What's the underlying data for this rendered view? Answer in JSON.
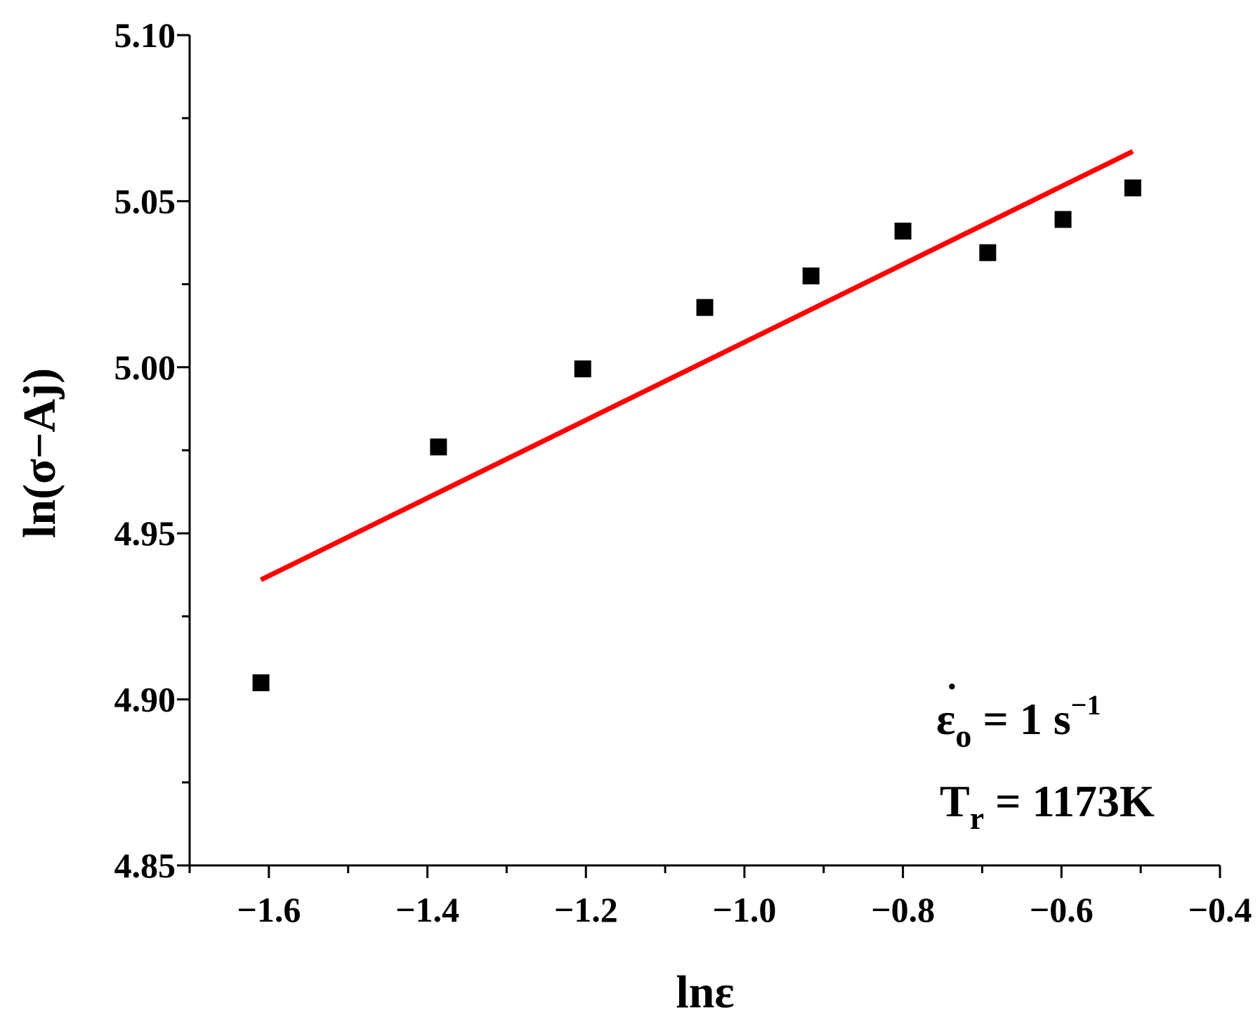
{
  "chart_data": {
    "type": "scatter",
    "title": "",
    "xlabel": "lnε",
    "ylabel": "ln(σ−Aj)",
    "xlim": [
      -1.7,
      -0.4
    ],
    "ylim": [
      4.85,
      5.1
    ],
    "x_ticks": [
      -1.6,
      -1.4,
      -1.2,
      -1.0,
      -0.8,
      -0.6,
      -0.4
    ],
    "x_tick_labels": [
      "−1.6",
      "−1.4",
      "−1.2",
      "−1.0",
      "−0.8",
      "−0.6",
      "−0.4"
    ],
    "y_ticks": [
      4.85,
      4.9,
      4.95,
      5.0,
      5.05,
      5.1
    ],
    "y_tick_labels": [
      "4.85",
      "4.90",
      "4.95",
      "5.00",
      "5.05",
      "5.10"
    ],
    "grid": false,
    "series": [
      {
        "kind": "points",
        "marker": "square",
        "color": "#000000",
        "x": [
          -1.61,
          -1.386,
          -1.204,
          -1.05,
          -0.916,
          -0.8,
          -0.693,
          -0.598,
          -0.51
        ],
        "y": [
          4.905,
          4.976,
          4.9995,
          5.018,
          5.0275,
          5.041,
          5.0345,
          5.0445,
          5.054
        ]
      },
      {
        "kind": "fit-line",
        "color": "#ff0000",
        "x": [
          -1.61,
          -0.51
        ],
        "y": [
          4.936,
          5.065
        ]
      }
    ],
    "annotations": {
      "strain_rate": {
        "symbol": "ε",
        "dot": "˙",
        "subscript": "o",
        "text": " = 1 s",
        "superscript": "−1"
      },
      "temperature": {
        "symbol": "T",
        "subscript": "r",
        "text": " = 1173K"
      }
    }
  }
}
